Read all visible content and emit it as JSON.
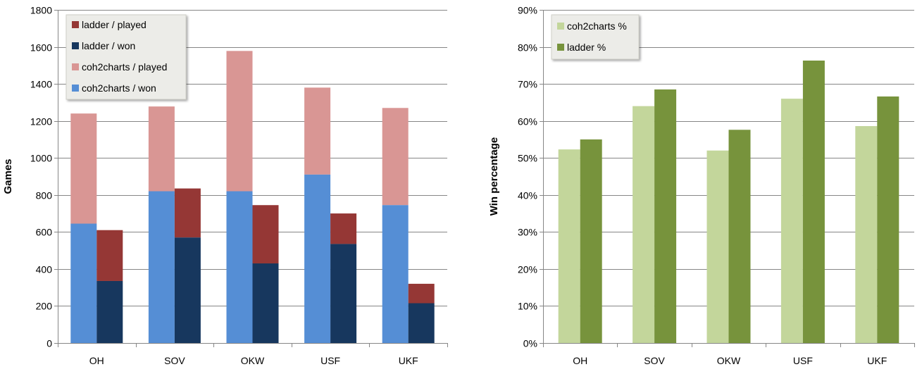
{
  "chart_data": [
    {
      "type": "bar",
      "title": "",
      "xlabel": "",
      "ylabel": "Games",
      "ylim": [
        0,
        1800
      ],
      "yticks": [
        0,
        200,
        400,
        600,
        800,
        1000,
        1200,
        1400,
        1600,
        1800
      ],
      "categories": [
        "OH",
        "SOV",
        "OKW",
        "USF",
        "UKF"
      ],
      "grid": "horizontal",
      "legend_position": "top-left",
      "legend_order": [
        "ladder / played",
        "ladder / won",
        "coh2charts / played",
        "coh2charts / won"
      ],
      "stacks": [
        {
          "name": "coh2charts",
          "series": [
            {
              "name": "coh2charts / won",
              "color": "#558ED5",
              "values": [
                645,
                820,
                820,
                910,
                745
              ]
            },
            {
              "name": "coh2charts / played",
              "color": "#D99694",
              "values": [
                1240,
                1278,
                1578,
                1380,
                1270
              ]
            }
          ]
        },
        {
          "name": "ladder",
          "series": [
            {
              "name": "ladder / won",
              "color": "#17375E",
              "values": [
                335,
                570,
                430,
                535,
                215
              ]
            },
            {
              "name": "ladder / played",
              "color": "#953735",
              "values": [
                610,
                835,
                745,
                700,
                320
              ]
            }
          ]
        }
      ]
    },
    {
      "type": "bar",
      "title": "",
      "xlabel": "",
      "ylabel": "Win percentage",
      "ylim": [
        0,
        90
      ],
      "yticks": [
        "0%",
        "10%",
        "20%",
        "30%",
        "40%",
        "50%",
        "60%",
        "70%",
        "80%",
        "90%"
      ],
      "categories": [
        "OH",
        "SOV",
        "OKW",
        "USF",
        "UKF"
      ],
      "grid": "horizontal",
      "legend_position": "top-left",
      "series": [
        {
          "name": "coh2charts %",
          "color": "#C3D69B",
          "values": [
            52.3,
            64.0,
            52.0,
            66.0,
            58.6
          ]
        },
        {
          "name": "ladder %",
          "color": "#77933C",
          "values": [
            55.0,
            68.5,
            57.6,
            76.3,
            66.6
          ]
        }
      ]
    }
  ]
}
